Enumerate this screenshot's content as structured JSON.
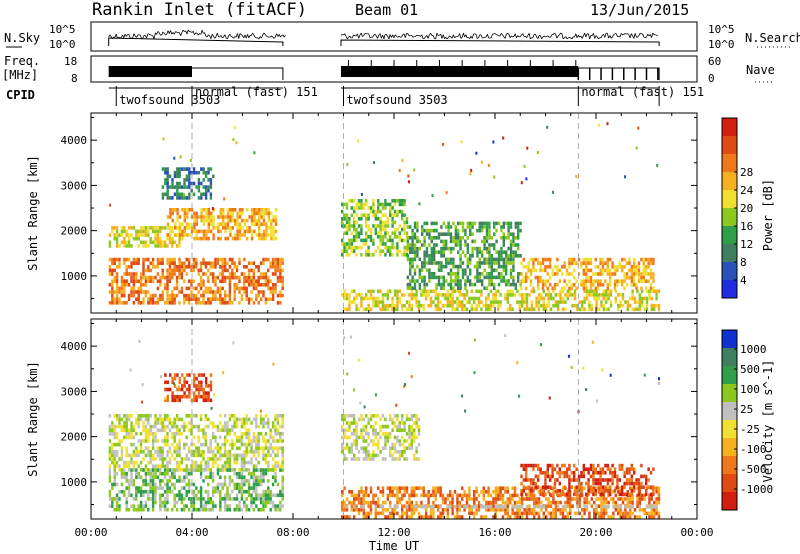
{
  "header": {
    "station": "Rankin Inlet (fitACF)",
    "beam": "Beam 01",
    "date": "13/Jun/2015"
  },
  "colors": {
    "power_scale": [
      "#1f2ce0",
      "#2850b8",
      "#3f7f5f",
      "#2e9e48",
      "#8cc81e",
      "#f0e030",
      "#f5b020",
      "#f07818",
      "#e04a14",
      "#d01e10"
    ],
    "velocity_scale": [
      "#1030d0",
      "#3f7f5f",
      "#2e9e48",
      "#8cc81e",
      "#c0c0c0",
      "#f0e030",
      "#f5b020",
      "#f07818",
      "#e04a14",
      "#d01e10"
    ],
    "ground_scatter": "#bebeb6"
  },
  "top_panels": {
    "nsky": {
      "label": "N.Sky",
      "tick_top": "10^5",
      "tick_bottom": "10^0",
      "right_label": "N.Search",
      "right_tick_top": "10^5",
      "right_tick_bottom": "10^0"
    },
    "freq": {
      "label_line1": "Freq.",
      "label_line2": "[MHz]",
      "tick_top": "18",
      "tick_bottom": "8",
      "right_label": "Nave",
      "right_tick_top": "60",
      "right_tick_bottom": "0"
    },
    "cpid": {
      "label": "CPID",
      "segments": [
        {
          "name": "twofsound",
          "id": "3503",
          "start_h": 1.0
        },
        {
          "name": "normal (fast)",
          "id": "151",
          "start_h": 4.0
        },
        {
          "name": "twofsound",
          "id": "3503",
          "start_h": 10.0
        },
        {
          "name": "normal (fast)",
          "id": "151",
          "start_h": 19.3
        }
      ]
    }
  },
  "chart_data": [
    {
      "type": "heatmap",
      "title": "",
      "quantity": "power",
      "xlabel": "",
      "ylabel": "Slant Range [km]",
      "xlim_h": [
        0,
        24
      ],
      "ylim_km": [
        180,
        4600
      ],
      "yticks": [
        1000,
        2000,
        3000,
        4000
      ],
      "colorbar_label": "Power [dB]",
      "colorbar_ticks": [
        "4",
        "8",
        "12",
        "16",
        "20",
        "24",
        "28"
      ],
      "data_gap_h": [
        7.7,
        9.9
      ],
      "mode_change_lines_h": [
        4.0,
        10.0,
        19.3
      ],
      "regions": [
        {
          "x": [
            0.7,
            7.6
          ],
          "y": [
            400,
            1400
          ],
          "level": 7
        },
        {
          "x": [
            0.7,
            3.5
          ],
          "y": [
            1700,
            2100
          ],
          "level": 5
        },
        {
          "x": [
            3.0,
            7.3
          ],
          "y": [
            1800,
            2500
          ],
          "level": 6
        },
        {
          "x": [
            2.8,
            4.8
          ],
          "y": [
            2700,
            3400
          ],
          "level": 2
        },
        {
          "x": [
            9.9,
            22.5
          ],
          "y": [
            250,
            700
          ],
          "level": 5
        },
        {
          "x": [
            9.9,
            12.5
          ],
          "y": [
            1500,
            2700
          ],
          "level": 4
        },
        {
          "x": [
            12.5,
            17.0
          ],
          "y": [
            700,
            2200
          ],
          "level": 3
        },
        {
          "x": [
            17.0,
            22.3
          ],
          "y": [
            700,
            1400
          ],
          "level": 6
        }
      ]
    },
    {
      "type": "heatmap",
      "title": "",
      "quantity": "velocity",
      "xlabel": "Time UT",
      "ylabel": "Slant Range [km]",
      "xlim_h": [
        0,
        24
      ],
      "ylim_km": [
        180,
        4600
      ],
      "yticks": [
        1000,
        2000,
        3000,
        4000
      ],
      "xticks": [
        "00:00",
        "04:00",
        "08:00",
        "12:00",
        "16:00",
        "20:00",
        "00:00"
      ],
      "colorbar_label": "Velocity [m s^-1]",
      "colorbar_ticks": [
        "1000",
        "500",
        "100",
        "25",
        "-25",
        "-100",
        "-500",
        "-1000"
      ],
      "data_gap_h": [
        7.7,
        9.9
      ],
      "mode_change_lines_h": [
        4.0,
        10.0,
        19.3
      ],
      "regions": [
        {
          "x": [
            0.7,
            7.6
          ],
          "y": [
            1300,
            2500
          ],
          "level": 4
        },
        {
          "x": [
            0.7,
            7.6
          ],
          "y": [
            350,
            1300
          ],
          "level": 3
        },
        {
          "x": [
            2.9,
            4.8
          ],
          "y": [
            2800,
            3400
          ],
          "level": 8
        },
        {
          "x": [
            9.9,
            13.0
          ],
          "y": [
            1500,
            2500
          ],
          "level": 4
        },
        {
          "x": [
            9.9,
            22.5
          ],
          "y": [
            250,
            900
          ],
          "level": 7
        },
        {
          "x": [
            17.0,
            22.3
          ],
          "y": [
            700,
            1400
          ],
          "level": 8
        }
      ]
    }
  ]
}
